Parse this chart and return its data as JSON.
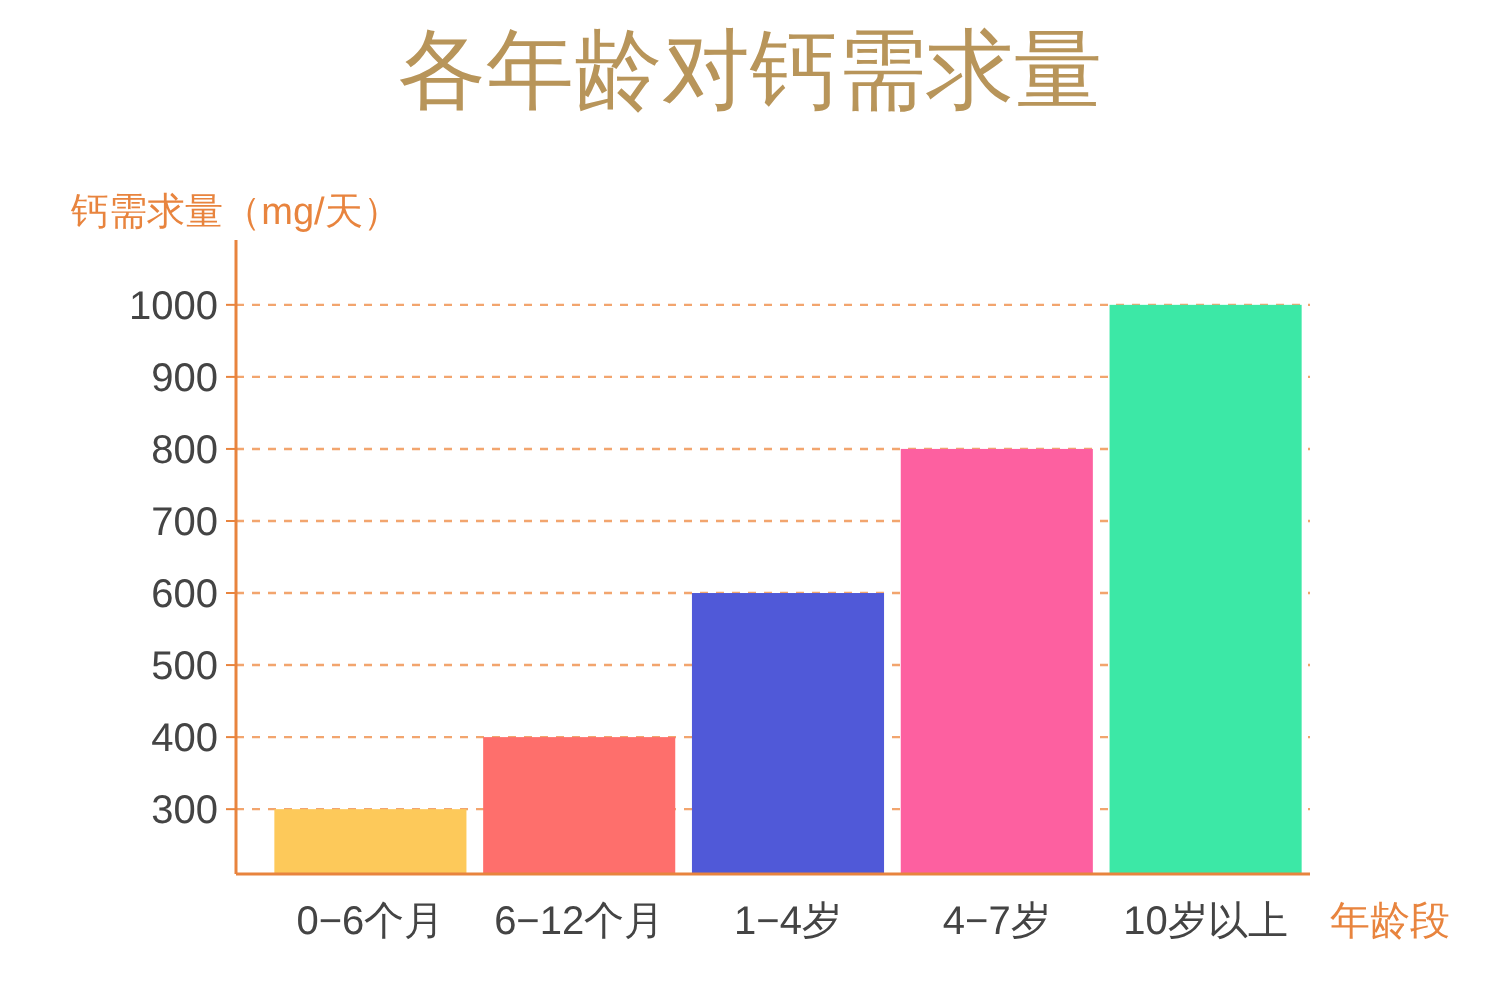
{
  "chart_data": {
    "type": "bar",
    "title": "各年龄对钙需求量",
    "ylabel": "钙需求量（mg/天）",
    "xlabel": "年龄段",
    "categories": [
      "0−6个月",
      "6−12个月",
      "1−4岁",
      "4−7岁",
      "10岁以上"
    ],
    "values": [
      300,
      400,
      600,
      800,
      1000
    ],
    "colors": [
      "#fdc95a",
      "#fe6f6c",
      "#5059d8",
      "#fd60a0",
      "#3ce8a6"
    ],
    "ylim": [
      210,
      1090
    ],
    "yticks": [
      300,
      400,
      500,
      600,
      700,
      800,
      900,
      1000
    ],
    "grid": "y"
  }
}
